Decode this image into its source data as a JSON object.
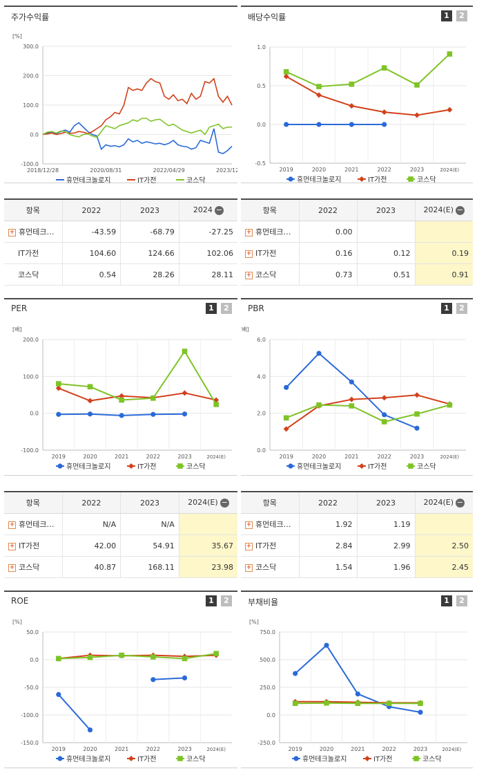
{
  "ui": {
    "btn1": "1",
    "btn2": "2",
    "col_item": "항목",
    "legend": [
      "휴먼테크놀로지",
      "IT가전",
      "코스닥"
    ],
    "colors": [
      "#2a6ad8",
      "#d2401a",
      "#7ec327"
    ],
    "plus": "+",
    "minus": "−"
  },
  "panels": {
    "stock": {
      "title": "주가수익률"
    },
    "dividend": {
      "title": "배당수익률"
    },
    "per": {
      "title": "PER"
    },
    "pbr": {
      "title": "PBR"
    },
    "roe": {
      "title": "ROE"
    },
    "debt": {
      "title": "부채비율"
    }
  },
  "tables": {
    "stock": {
      "cols": [
        "2022",
        "2023",
        "2024"
      ],
      "rows": [
        {
          "name": "휴먼테크…",
          "plus": true,
          "values": [
            "-43.59",
            "-68.79",
            "-27.25"
          ]
        },
        {
          "name": "IT가전",
          "plus": false,
          "values": [
            "104.60",
            "124.66",
            "102.06"
          ]
        },
        {
          "name": "코스닥",
          "plus": false,
          "values": [
            "0.54",
            "28.26",
            "28.11"
          ]
        }
      ]
    },
    "dividend": {
      "cols": [
        "2022",
        "2023",
        "2024(E)"
      ],
      "rows": [
        {
          "name": "휴먼테크…",
          "plus": true,
          "values": [
            "0.00",
            "",
            ""
          ]
        },
        {
          "name": "IT가전",
          "plus": true,
          "values": [
            "0.16",
            "0.12",
            "0.19"
          ]
        },
        {
          "name": "코스닥",
          "plus": true,
          "values": [
            "0.73",
            "0.51",
            "0.91"
          ]
        }
      ]
    },
    "per": {
      "cols": [
        "2022",
        "2023",
        "2024(E)"
      ],
      "rows": [
        {
          "name": "휴먼테크…",
          "plus": true,
          "values": [
            "N/A",
            "N/A",
            ""
          ]
        },
        {
          "name": "IT가전",
          "plus": true,
          "values": [
            "42.00",
            "54.91",
            "35.67"
          ]
        },
        {
          "name": "코스닥",
          "plus": true,
          "values": [
            "40.87",
            "168.11",
            "23.98"
          ]
        }
      ]
    },
    "pbr": {
      "cols": [
        "2022",
        "2023",
        "2024(E)"
      ],
      "rows": [
        {
          "name": "휴먼테크…",
          "plus": true,
          "values": [
            "1.92",
            "1.19",
            ""
          ]
        },
        {
          "name": "IT가전",
          "plus": true,
          "values": [
            "2.84",
            "2.99",
            "2.50"
          ]
        },
        {
          "name": "코스닥",
          "plus": true,
          "values": [
            "1.54",
            "1.96",
            "2.45"
          ]
        }
      ]
    }
  },
  "chart_data": [
    {
      "id": "stock",
      "type": "line",
      "title": "주가수익률",
      "ylabel": "[%]",
      "ylim": [
        -100,
        300
      ],
      "yticks": [
        "300.0",
        "200.0",
        "100.0",
        "0.0",
        "-100.0"
      ],
      "xtick_labels": [
        "2018/12/28",
        "2020/08/31",
        "2022/04/29",
        "2023/12/28"
      ],
      "grid": "horizontal",
      "legend": "bottom",
      "series": [
        {
          "name": "휴먼테크놀로지",
          "values": [
            0,
            5,
            8,
            3,
            10,
            15,
            8,
            30,
            40,
            25,
            10,
            0,
            -5,
            -50,
            -35,
            -40,
            -38,
            -42,
            -35,
            -15,
            -25,
            -20,
            -30,
            -25,
            -28,
            -32,
            -30,
            -35,
            -30,
            -20,
            -35,
            -40,
            -42,
            -50,
            -45,
            -20,
            -25,
            -30,
            20,
            -60,
            -65,
            -55,
            -40
          ]
        },
        {
          "name": "IT가전",
          "values": [
            0,
            2,
            5,
            0,
            3,
            8,
            4,
            5,
            10,
            8,
            3,
            10,
            20,
            30,
            50,
            60,
            75,
            70,
            100,
            160,
            150,
            155,
            150,
            175,
            190,
            180,
            175,
            130,
            120,
            135,
            115,
            120,
            105,
            140,
            120,
            130,
            180,
            175,
            190,
            130,
            110,
            130,
            100
          ]
        },
        {
          "name": "코스닥",
          "values": [
            0,
            8,
            10,
            5,
            12,
            10,
            0,
            -5,
            -8,
            0,
            2,
            -5,
            -10,
            10,
            30,
            25,
            20,
            30,
            35,
            40,
            50,
            45,
            55,
            55,
            45,
            50,
            52,
            40,
            30,
            35,
            25,
            15,
            10,
            5,
            10,
            15,
            0,
            25,
            30,
            35,
            20,
            25,
            25
          ]
        }
      ]
    },
    {
      "id": "dividend",
      "type": "line",
      "title": "배당수익률",
      "ylim": [
        -0.5,
        1.0
      ],
      "yticks": [
        "1.0",
        "0.5",
        "0.0",
        "-0.5"
      ],
      "categories": [
        "2019",
        "2020",
        "2021",
        "2022",
        "2023",
        "2024(E)"
      ],
      "grid": "both",
      "legend": "bottom",
      "series": [
        {
          "name": "휴먼테크놀로지",
          "values": [
            0.0,
            0.0,
            0.0,
            0.0,
            null,
            null
          ]
        },
        {
          "name": "IT가전",
          "values": [
            0.62,
            0.38,
            0.24,
            0.16,
            0.12,
            0.19
          ]
        },
        {
          "name": "코스닥",
          "values": [
            0.68,
            0.49,
            0.52,
            0.73,
            0.51,
            0.91
          ]
        }
      ]
    },
    {
      "id": "per",
      "type": "line",
      "title": "PER",
      "ylabel": "[배]",
      "ylim": [
        -100,
        200
      ],
      "yticks": [
        "200.0",
        "100.0",
        "0.0",
        "-100.0"
      ],
      "categories": [
        "2019",
        "2020",
        "2021",
        "2022",
        "2023",
        "2024(E)"
      ],
      "grid": "both",
      "legend": "bottom",
      "series": [
        {
          "name": "휴먼테크놀로지",
          "values": [
            -3,
            -2,
            -6,
            -3,
            -2,
            null
          ]
        },
        {
          "name": "IT가전",
          "values": [
            68,
            34,
            47,
            42,
            55,
            36
          ]
        },
        {
          "name": "코스닥",
          "values": [
            80,
            72,
            36,
            41,
            168,
            24
          ]
        }
      ]
    },
    {
      "id": "pbr",
      "type": "line",
      "title": "PBR",
      "ylabel": "[배]",
      "ylim": [
        0,
        6
      ],
      "yticks": [
        "6.0",
        "4.0",
        "2.0",
        "0.0"
      ],
      "categories": [
        "2019",
        "2020",
        "2021",
        "2022",
        "2023",
        "2024(E)"
      ],
      "grid": "both",
      "legend": "bottom",
      "series": [
        {
          "name": "휴먼테크놀로지",
          "values": [
            3.4,
            5.25,
            3.7,
            1.92,
            1.19,
            null
          ]
        },
        {
          "name": "IT가전",
          "values": [
            1.15,
            2.4,
            2.75,
            2.84,
            2.99,
            2.5
          ]
        },
        {
          "name": "코스닥",
          "values": [
            1.75,
            2.45,
            2.4,
            1.54,
            1.96,
            2.45
          ]
        }
      ]
    },
    {
      "id": "roe",
      "type": "line",
      "title": "ROE",
      "ylabel": "[%]",
      "ylim": [
        -150,
        50
      ],
      "yticks": [
        "50.0",
        "0.0",
        "-50.0",
        "-100.0",
        "-150.0"
      ],
      "categories": [
        "2019",
        "2020",
        "2021",
        "2022",
        "2023",
        "2024(E)"
      ],
      "grid": "both",
      "legend": "bottom",
      "series": [
        {
          "name": "휴먼테크놀로지",
          "values": [
            -63,
            -127,
            null,
            -36,
            -33,
            null
          ]
        },
        {
          "name": "IT가전",
          "values": [
            2,
            8,
            7,
            8,
            6,
            8
          ]
        },
        {
          "name": "코스닥",
          "values": [
            2,
            4,
            8,
            5,
            2,
            11
          ]
        }
      ]
    },
    {
      "id": "debt",
      "type": "line",
      "title": "부채비율",
      "ylabel": "[%]",
      "ylim": [
        -250,
        750
      ],
      "yticks": [
        "750.0",
        "500.0",
        "250.0",
        "0.0",
        "-250.0"
      ],
      "categories": [
        "2019",
        "2020",
        "2021",
        "2022",
        "2023",
        "2024(E)"
      ],
      "grid": "both",
      "legend": "bottom",
      "series": [
        {
          "name": "휴먼테크놀로지",
          "values": [
            375,
            630,
            190,
            75,
            25,
            null
          ]
        },
        {
          "name": "IT가전",
          "values": [
            120,
            120,
            115,
            110,
            110,
            null
          ]
        },
        {
          "name": "코스닥",
          "values": [
            105,
            108,
            105,
            105,
            105,
            null
          ]
        }
      ]
    }
  ]
}
